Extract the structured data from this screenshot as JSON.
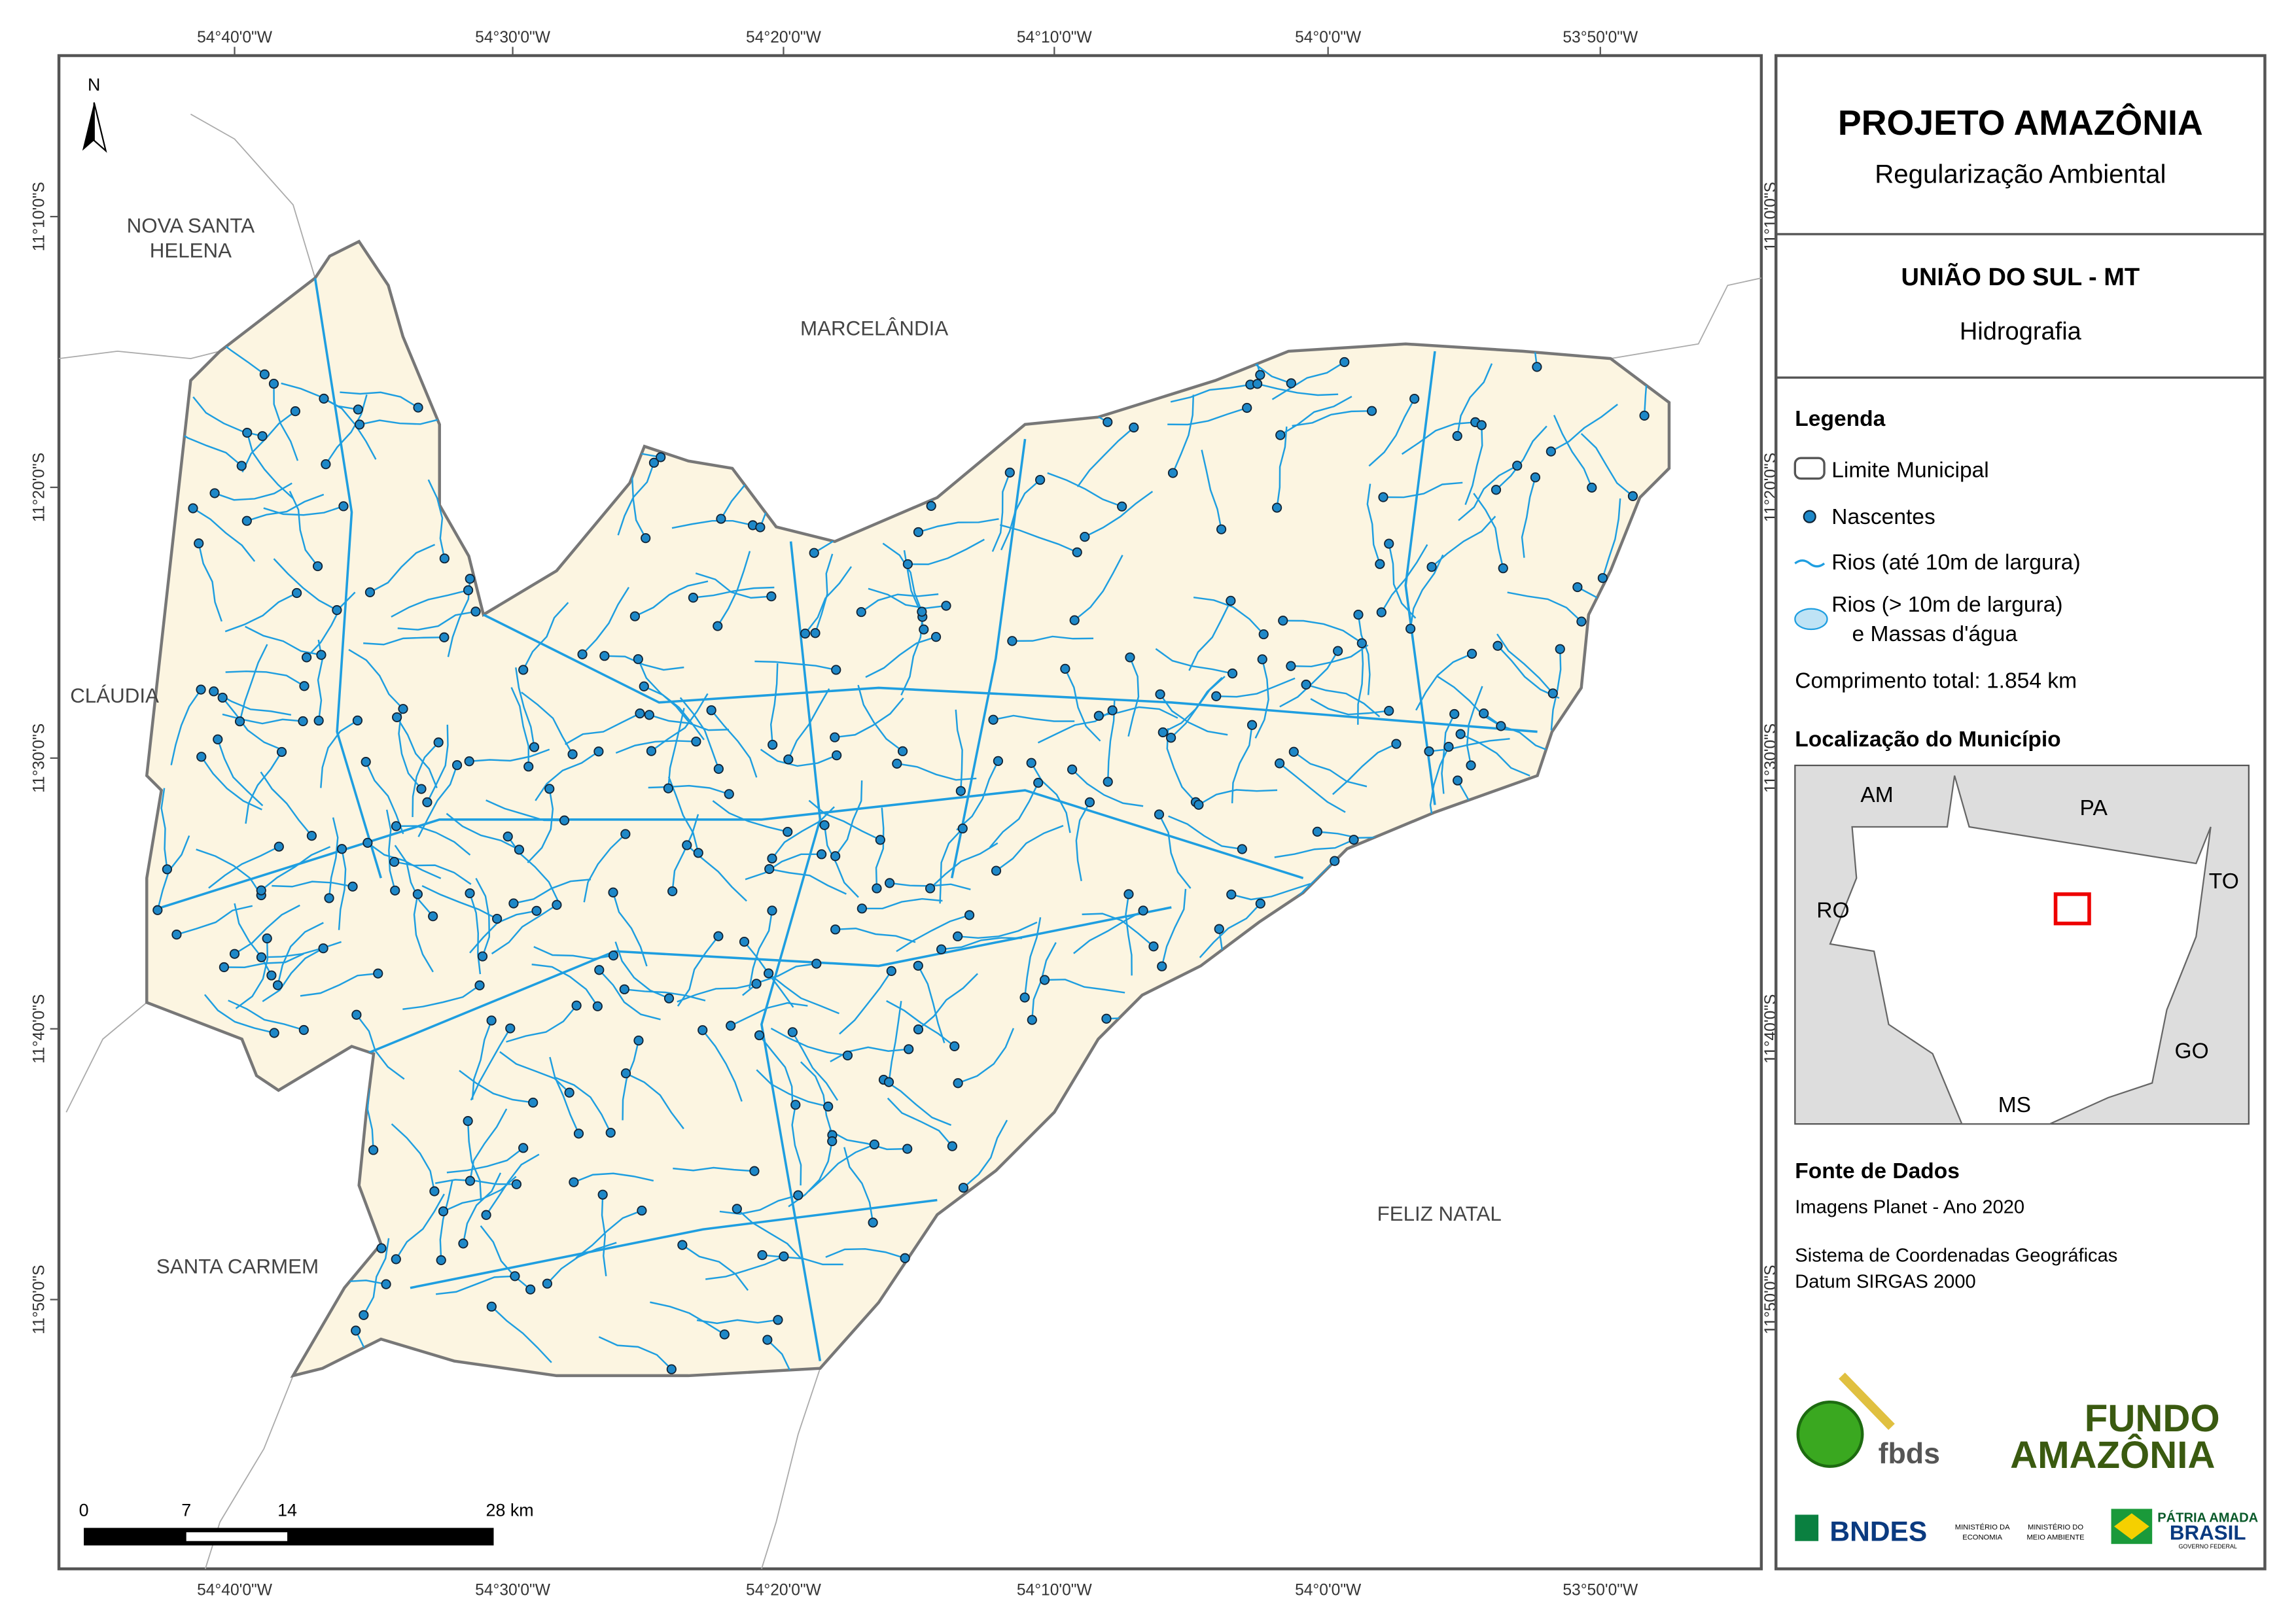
{
  "map": {
    "north": "N",
    "lon_labels": [
      "54°40'0\"W",
      "54°30'0\"W",
      "54°20'0\"W",
      "54°10'0\"W",
      "54°0'0\"W",
      "53°50'0\"W"
    ],
    "lat_labels": [
      "11°10'0\"S",
      "11°20'0\"S",
      "11°30'0\"S",
      "11°40'0\"S",
      "11°50'0\"S"
    ],
    "neighbors": [
      [
        "NOVA SANTA",
        "HELENA"
      ],
      [
        "MARCELÂNDIA"
      ],
      [
        "CLÁUDIA"
      ],
      [
        "SANTA CARMEM"
      ],
      [
        "FELIZ NATAL"
      ]
    ],
    "scale_bar": [
      "0",
      "7",
      "14",
      "28 km"
    ]
  },
  "panel": {
    "title": "PROJETO AMAZÔNIA",
    "subtitle": "Regularização Ambiental",
    "municipality": "UNIÃO DO SUL - MT",
    "theme": "Hidrografia",
    "legend": {
      "title": "Legenda",
      "items": [
        [
          "Limite Municipal"
        ],
        [
          "Nascentes"
        ],
        [
          "Rios (até 10m de largura)"
        ],
        [
          "Rios (> 10m de largura)",
          "e Massas d'água"
        ]
      ],
      "total_length": "Comprimento total:  1.854 km"
    },
    "location": {
      "title": "Localização do Município",
      "states": [
        "AM",
        "PA",
        "TO",
        "RO",
        "GO",
        "MS"
      ]
    },
    "sources": {
      "title": "Fonte de Dados",
      "lines": [
        "Imagens Planet - Ano 2020",
        "Sistema de Coordenadas Geográficas",
        "Datum SIRGAS 2000"
      ]
    },
    "logos": [
      "fbds",
      "FUNDO",
      "AMAZÔNIA",
      "BNDES",
      "MINISTÉRIO DA",
      "ECONOMIA",
      "MINISTÉRIO DO",
      "MEIO AMBIENTE",
      "PÁTRIA AMADA",
      "BRASIL",
      "GOVERNO FEDERAL"
    ]
  }
}
